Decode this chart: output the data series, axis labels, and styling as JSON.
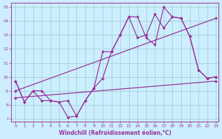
{
  "title": "",
  "xlabel": "Windchill (Refroidissement éolien,°C)",
  "ylabel": "",
  "bg_color": "#cceeff",
  "line_color": "#993399",
  "xlim_min": -0.5,
  "xlim_max": 23.3,
  "ylim_min": 6.8,
  "ylim_max": 15.3,
  "xticks": [
    0,
    1,
    2,
    3,
    4,
    5,
    6,
    7,
    8,
    9,
    10,
    11,
    12,
    13,
    14,
    15,
    16,
    17,
    18,
    19,
    20,
    21,
    22,
    23
  ],
  "yticks": [
    7,
    8,
    9,
    10,
    11,
    12,
    13,
    14,
    15
  ],
  "series": [
    {
      "x": [
        0,
        1,
        2,
        3,
        4,
        5,
        6,
        7,
        8,
        9,
        10,
        11,
        12,
        13,
        14,
        15,
        16,
        17,
        18,
        19,
        20,
        21,
        22,
        23
      ],
      "y": [
        9.7,
        8.2,
        9.0,
        8.3,
        8.3,
        8.2,
        7.1,
        7.2,
        8.3,
        9.2,
        9.9,
        11.8,
        13.0,
        14.3,
        14.3,
        12.8,
        12.3,
        15.0,
        14.3,
        14.2,
        12.9,
        10.5,
        9.9,
        10.0
      ]
    },
    {
      "x": [
        0,
        1,
        2,
        3,
        4,
        5,
        6,
        7,
        8,
        9,
        10,
        11,
        12,
        13,
        14,
        15,
        16,
        17,
        18,
        19,
        20,
        21,
        22,
        23
      ],
      "y": [
        9.7,
        8.2,
        9.0,
        9.0,
        8.3,
        8.2,
        8.3,
        7.2,
        8.3,
        9.2,
        11.8,
        11.8,
        13.0,
        14.3,
        12.8,
        13.0,
        14.5,
        13.5,
        14.3,
        14.2,
        12.9,
        10.5,
        9.9,
        10.0
      ]
    },
    {
      "x": [
        0,
        23
      ],
      "y": [
        9.0,
        14.2
      ]
    },
    {
      "x": [
        0,
        23
      ],
      "y": [
        8.5,
        9.7
      ]
    }
  ],
  "grid_color": "#99cccc",
  "marker": "D",
  "markersize": 2.0,
  "linewidth": 0.9
}
